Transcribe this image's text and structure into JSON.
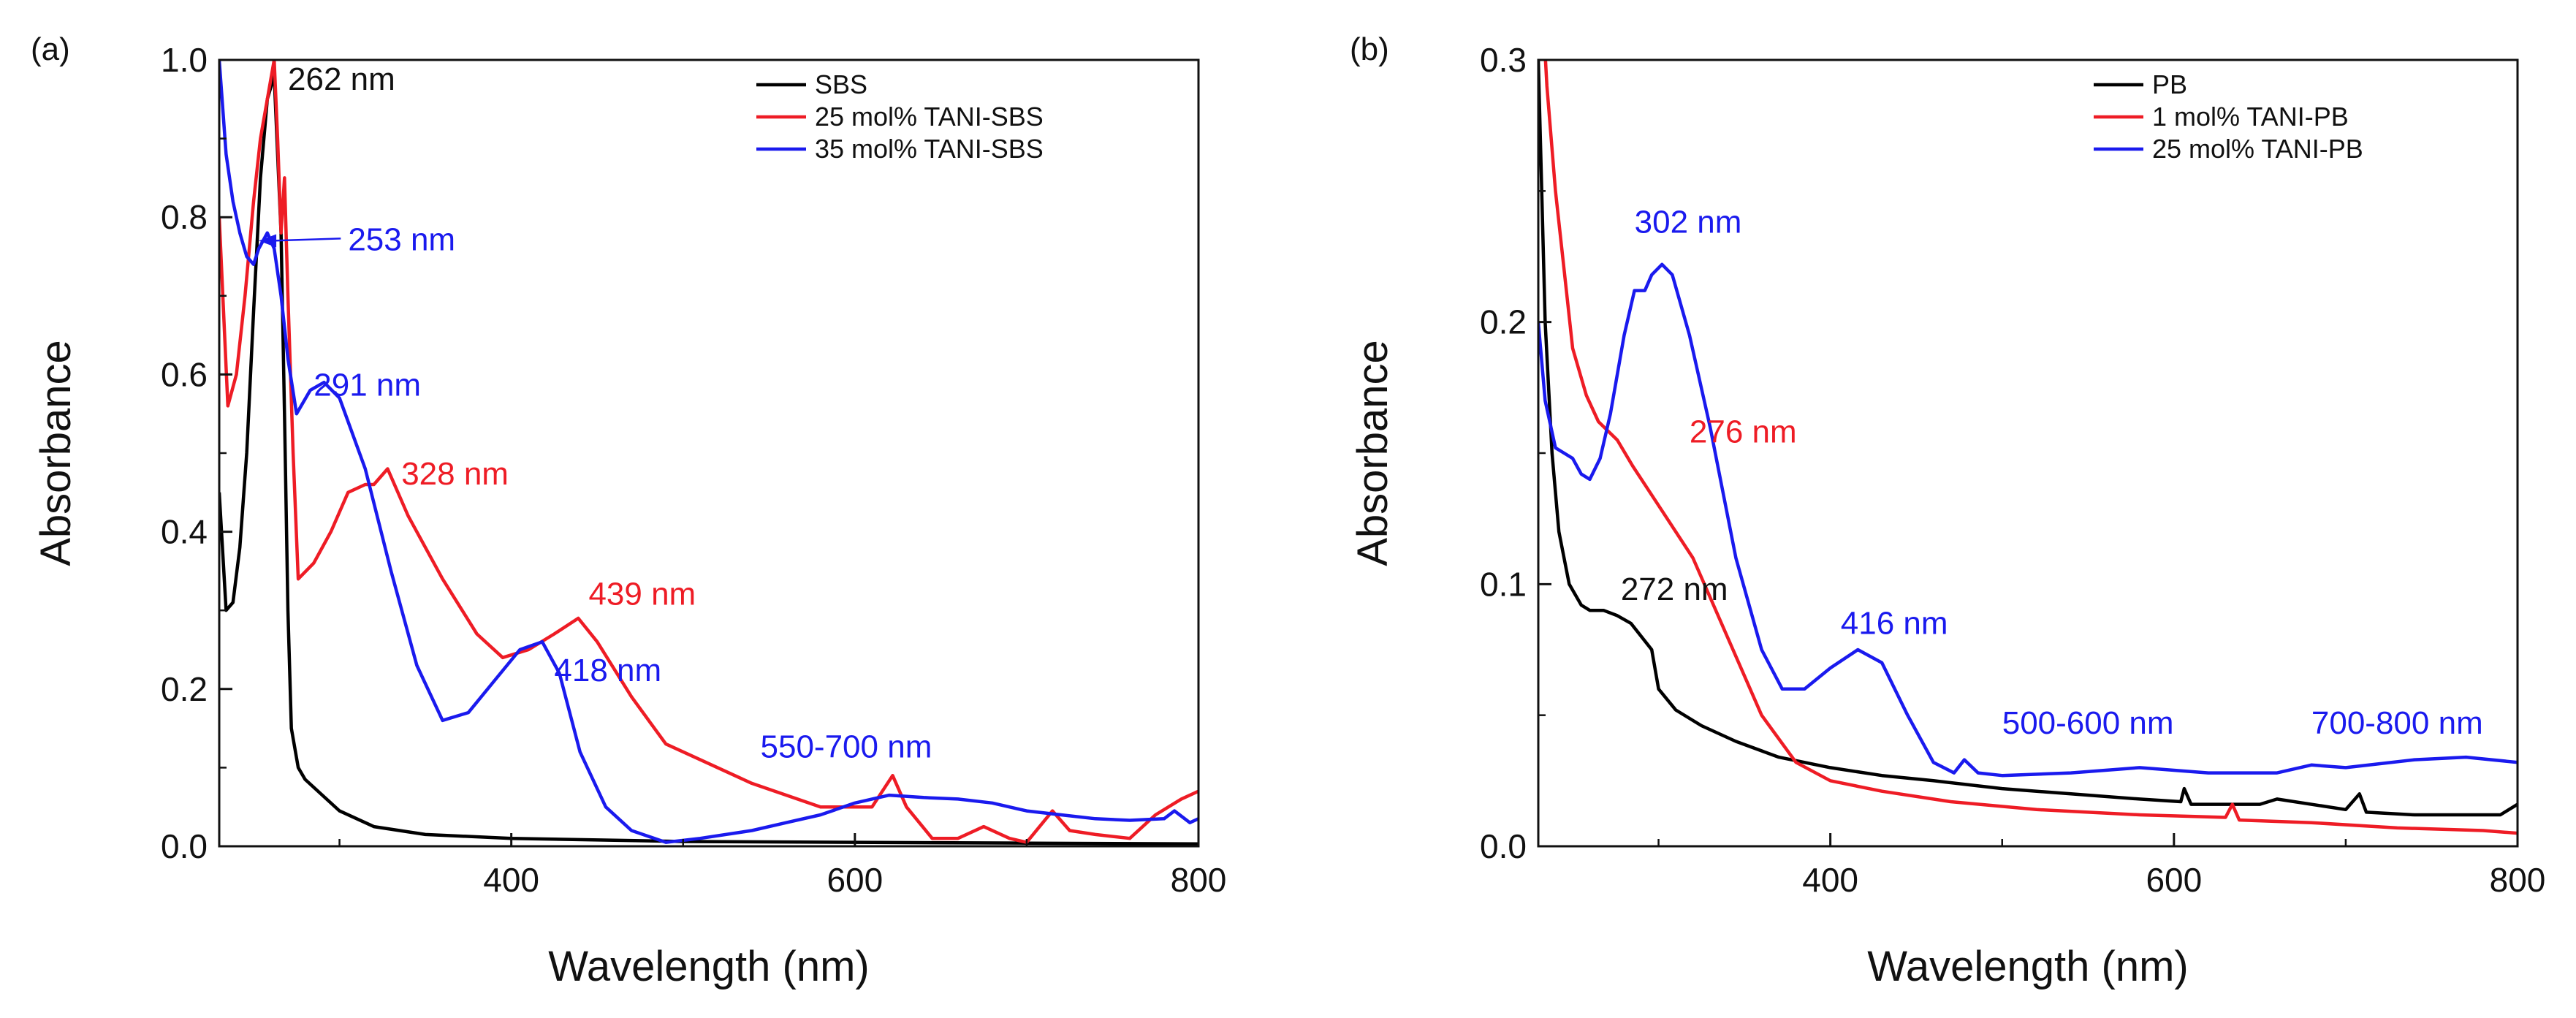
{
  "chart_data": [
    {
      "type": "line",
      "panel_label": "(a)",
      "xlabel": "Wavelength (nm)",
      "ylabel": "Absorbance",
      "xlim": [
        230,
        800
      ],
      "ylim": [
        0,
        1.0
      ],
      "x_ticks": [
        400,
        600,
        800
      ],
      "y_ticks": [
        0.0,
        0.2,
        0.4,
        0.6,
        0.8,
        1.0
      ],
      "y_tick_labels": [
        "0.0",
        "0.2",
        "0.4",
        "0.6",
        "0.8",
        "1.0"
      ],
      "grid": false,
      "legend_position": "top-right",
      "series": [
        {
          "name": "SBS",
          "color": "#000000",
          "points": [
            [
              230,
              0.45
            ],
            [
              234,
              0.3
            ],
            [
              238,
              0.31
            ],
            [
              242,
              0.38
            ],
            [
              246,
              0.5
            ],
            [
              250,
              0.68
            ],
            [
              254,
              0.85
            ],
            [
              258,
              0.95
            ],
            [
              262,
              0.98
            ],
            [
              266,
              0.78
            ],
            [
              268,
              0.55
            ],
            [
              270,
              0.3
            ],
            [
              272,
              0.15
            ],
            [
              276,
              0.1
            ],
            [
              280,
              0.085
            ],
            [
              290,
              0.065
            ],
            [
              300,
              0.045
            ],
            [
              320,
              0.025
            ],
            [
              350,
              0.015
            ],
            [
              400,
              0.01
            ],
            [
              500,
              0.006
            ],
            [
              600,
              0.005
            ],
            [
              700,
              0.004
            ],
            [
              800,
              0.003
            ]
          ]
        },
        {
          "name": "25 mol% TANI-SBS",
          "color": "#ee1c25",
          "points": [
            [
              230,
              0.8
            ],
            [
              235,
              0.56
            ],
            [
              240,
              0.6
            ],
            [
              245,
              0.7
            ],
            [
              250,
              0.82
            ],
            [
              254,
              0.9
            ],
            [
              258,
              0.95
            ],
            [
              262,
              1.0
            ],
            [
              264,
              0.9
            ],
            [
              266,
              0.78
            ],
            [
              268,
              0.85
            ],
            [
              270,
              0.7
            ],
            [
              273,
              0.5
            ],
            [
              276,
              0.34
            ],
            [
              285,
              0.36
            ],
            [
              295,
              0.4
            ],
            [
              305,
              0.45
            ],
            [
              315,
              0.46
            ],
            [
              320,
              0.46
            ],
            [
              328,
              0.48
            ],
            [
              340,
              0.42
            ],
            [
              360,
              0.34
            ],
            [
              380,
              0.27
            ],
            [
              395,
              0.24
            ],
            [
              410,
              0.25
            ],
            [
              425,
              0.27
            ],
            [
              439,
              0.29
            ],
            [
              450,
              0.26
            ],
            [
              470,
              0.19
            ],
            [
              490,
              0.13
            ],
            [
              510,
              0.11
            ],
            [
              540,
              0.08
            ],
            [
              580,
              0.05
            ],
            [
              610,
              0.05
            ],
            [
              622,
              0.09
            ],
            [
              630,
              0.05
            ],
            [
              645,
              0.01
            ],
            [
              660,
              0.01
            ],
            [
              675,
              0.025
            ],
            [
              690,
              0.01
            ],
            [
              700,
              0.005
            ],
            [
              715,
              0.045
            ],
            [
              725,
              0.02
            ],
            [
              740,
              0.015
            ],
            [
              760,
              0.01
            ],
            [
              775,
              0.04
            ],
            [
              790,
              0.06
            ],
            [
              800,
              0.07
            ]
          ]
        },
        {
          "name": "35 mol% TANI-SBS",
          "color": "#1a1aee",
          "points": [
            [
              230,
              1.0
            ],
            [
              234,
              0.88
            ],
            [
              238,
              0.82
            ],
            [
              242,
              0.78
            ],
            [
              246,
              0.75
            ],
            [
              250,
              0.74
            ],
            [
              253,
              0.76
            ],
            [
              258,
              0.78
            ],
            [
              262,
              0.76
            ],
            [
              266,
              0.7
            ],
            [
              270,
              0.62
            ],
            [
              275,
              0.55
            ],
            [
              283,
              0.58
            ],
            [
              291,
              0.59
            ],
            [
              300,
              0.57
            ],
            [
              315,
              0.48
            ],
            [
              330,
              0.35
            ],
            [
              345,
              0.23
            ],
            [
              360,
              0.16
            ],
            [
              375,
              0.17
            ],
            [
              390,
              0.21
            ],
            [
              405,
              0.25
            ],
            [
              418,
              0.26
            ],
            [
              428,
              0.22
            ],
            [
              440,
              0.12
            ],
            [
              455,
              0.05
            ],
            [
              470,
              0.02
            ],
            [
              490,
              0.005
            ],
            [
              510,
              0.01
            ],
            [
              540,
              0.02
            ],
            [
              560,
              0.03
            ],
            [
              580,
              0.04
            ],
            [
              600,
              0.055
            ],
            [
              620,
              0.065
            ],
            [
              640,
              0.062
            ],
            [
              660,
              0.06
            ],
            [
              680,
              0.055
            ],
            [
              700,
              0.045
            ],
            [
              720,
              0.04
            ],
            [
              740,
              0.035
            ],
            [
              760,
              0.033
            ],
            [
              780,
              0.035
            ],
            [
              786,
              0.045
            ],
            [
              795,
              0.03
            ],
            [
              800,
              0.035
            ]
          ]
        }
      ],
      "annotations": [
        {
          "text": "262 nm",
          "x": 270,
          "y": 0.962,
          "color": "#111111"
        },
        {
          "text": "253 nm",
          "x": 305,
          "y": 0.758,
          "color": "#1a1aee",
          "arrow_to": [
            253,
            0.77
          ]
        },
        {
          "text": "291 nm",
          "x": 285,
          "y": 0.573,
          "color": "#1a1aee"
        },
        {
          "text": "328 nm",
          "x": 336,
          "y": 0.46,
          "color": "#ee1c25"
        },
        {
          "text": "439 nm",
          "x": 445,
          "y": 0.307,
          "color": "#ee1c25"
        },
        {
          "text": "418 nm",
          "x": 425,
          "y": 0.21,
          "color": "#1a1aee"
        },
        {
          "text": "550-700 nm",
          "x": 545,
          "y": 0.113,
          "color": "#1a1aee"
        }
      ]
    },
    {
      "type": "line",
      "panel_label": "(b)",
      "xlabel": "Wavelength (nm)",
      "ylabel": "Absorbance",
      "xlim": [
        230,
        800
      ],
      "ylim": [
        0,
        0.3
      ],
      "x_ticks": [
        400,
        600,
        800
      ],
      "y_ticks": [
        0.0,
        0.1,
        0.2,
        0.3
      ],
      "y_tick_labels": [
        "0.0",
        "0.1",
        "0.2",
        "0.3"
      ],
      "grid": false,
      "legend_position": "top-right",
      "series": [
        {
          "name": "PB",
          "color": "#000000",
          "points": [
            [
              230,
              0.3
            ],
            [
              234,
              0.2
            ],
            [
              238,
              0.15
            ],
            [
              242,
              0.12
            ],
            [
              248,
              0.1
            ],
            [
              255,
              0.092
            ],
            [
              260,
              0.09
            ],
            [
              268,
              0.09
            ],
            [
              276,
              0.088
            ],
            [
              284,
              0.085
            ],
            [
              290,
              0.08
            ],
            [
              296,
              0.075
            ],
            [
              300,
              0.06
            ],
            [
              310,
              0.052
            ],
            [
              325,
              0.046
            ],
            [
              345,
              0.04
            ],
            [
              370,
              0.034
            ],
            [
              400,
              0.03
            ],
            [
              430,
              0.027
            ],
            [
              460,
              0.025
            ],
            [
              500,
              0.022
            ],
            [
              540,
              0.02
            ],
            [
              580,
              0.018
            ],
            [
              604,
              0.017
            ],
            [
              606,
              0.022
            ],
            [
              610,
              0.016
            ],
            [
              650,
              0.016
            ],
            [
              660,
              0.018
            ],
            [
              700,
              0.014
            ],
            [
              708,
              0.02
            ],
            [
              712,
              0.013
            ],
            [
              740,
              0.012
            ],
            [
              770,
              0.012
            ],
            [
              790,
              0.012
            ],
            [
              800,
              0.016
            ]
          ]
        },
        {
          "name": "1 mol% TANI-PB",
          "color": "#ee1c25",
          "points": [
            [
              230,
              0.35
            ],
            [
              235,
              0.29
            ],
            [
              240,
              0.25
            ],
            [
              245,
              0.22
            ],
            [
              250,
              0.19
            ],
            [
              258,
              0.172
            ],
            [
              265,
              0.162
            ],
            [
              276,
              0.155
            ],
            [
              285,
              0.145
            ],
            [
              300,
              0.13
            ],
            [
              320,
              0.11
            ],
            [
              340,
              0.08
            ],
            [
              360,
              0.05
            ],
            [
              380,
              0.032
            ],
            [
              400,
              0.025
            ],
            [
              430,
              0.021
            ],
            [
              470,
              0.017
            ],
            [
              520,
              0.014
            ],
            [
              580,
              0.012
            ],
            [
              630,
              0.011
            ],
            [
              634,
              0.016
            ],
            [
              638,
              0.01
            ],
            [
              680,
              0.009
            ],
            [
              730,
              0.007
            ],
            [
              780,
              0.006
            ],
            [
              800,
              0.005
            ]
          ]
        },
        {
          "name": "25 mol% TANI-PB",
          "color": "#1a1aee",
          "points": [
            [
              230,
              0.2
            ],
            [
              234,
              0.17
            ],
            [
              240,
              0.152
            ],
            [
              245,
              0.15
            ],
            [
              250,
              0.148
            ],
            [
              255,
              0.142
            ],
            [
              260,
              0.14
            ],
            [
              266,
              0.148
            ],
            [
              272,
              0.165
            ],
            [
              280,
              0.195
            ],
            [
              286,
              0.212
            ],
            [
              292,
              0.212
            ],
            [
              296,
              0.218
            ],
            [
              302,
              0.222
            ],
            [
              308,
              0.218
            ],
            [
              318,
              0.195
            ],
            [
              330,
              0.16
            ],
            [
              345,
              0.11
            ],
            [
              360,
              0.075
            ],
            [
              372,
              0.06
            ],
            [
              385,
              0.06
            ],
            [
              400,
              0.068
            ],
            [
              416,
              0.075
            ],
            [
              430,
              0.07
            ],
            [
              445,
              0.05
            ],
            [
              460,
              0.032
            ],
            [
              472,
              0.028
            ],
            [
              478,
              0.033
            ],
            [
              486,
              0.028
            ],
            [
              500,
              0.027
            ],
            [
              540,
              0.028
            ],
            [
              580,
              0.03
            ],
            [
              620,
              0.028
            ],
            [
              660,
              0.028
            ],
            [
              680,
              0.031
            ],
            [
              700,
              0.03
            ],
            [
              740,
              0.033
            ],
            [
              770,
              0.034
            ],
            [
              800,
              0.032
            ]
          ]
        }
      ],
      "annotations": [
        {
          "text": "302 nm",
          "x": 286,
          "y": 0.234,
          "color": "#1a1aee"
        },
        {
          "text": "276 nm",
          "x": 318,
          "y": 0.154,
          "color": "#ee1c25"
        },
        {
          "text": "272 nm",
          "x": 278,
          "y": 0.094,
          "color": "#111111"
        },
        {
          "text": "416 nm",
          "x": 406,
          "y": 0.081,
          "color": "#1a1aee"
        },
        {
          "text": "500-600 nm",
          "x": 500,
          "y": 0.043,
          "color": "#1a1aee"
        },
        {
          "text": "700-800 nm",
          "x": 680,
          "y": 0.043,
          "color": "#1a1aee"
        }
      ]
    }
  ]
}
